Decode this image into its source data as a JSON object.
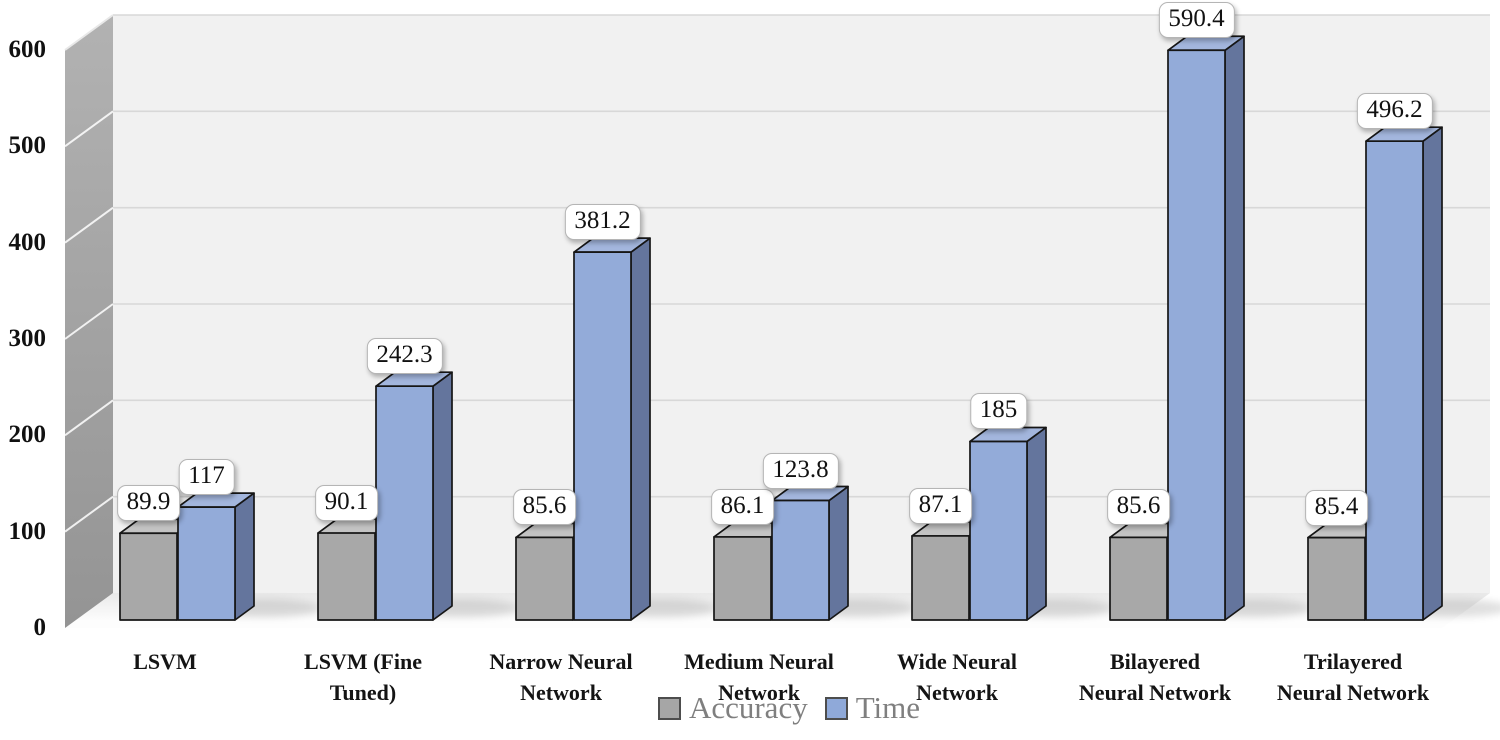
{
  "chart_data": {
    "type": "bar",
    "projection": "3d",
    "title": "",
    "xlabel": "",
    "ylabel": "",
    "categories": [
      "LSVM",
      "LSVM (Fine\nTuned)",
      "Narrow Neural\nNetwork",
      "Medium Neural\nNetwork",
      "Wide Neural\nNetwork",
      "Bilayered\nNeural Network",
      "Trilayered\nNeural Network"
    ],
    "series": [
      {
        "name": "Accuracy",
        "values": [
          89.9,
          90.1,
          85.6,
          86.1,
          87.1,
          85.6,
          85.4
        ],
        "value_labels": [
          "89.9",
          "90.1",
          "85.6",
          "86.1",
          "87.1",
          "85.6",
          "85.4"
        ],
        "color_front": "#a8a8a8",
        "color_top": "#c3c3c3",
        "color_side": "#8a8a8a",
        "legend_color": "#a6a6a6"
      },
      {
        "name": "Time",
        "values": [
          117,
          242.3,
          381.2,
          123.8,
          185,
          590.4,
          496.2
        ],
        "value_labels": [
          "117",
          "242.3",
          "381.2",
          "123.8",
          "185",
          "590.4",
          "496.2"
        ],
        "color_front": "#93abd9",
        "color_top": "#a3b6dd",
        "color_side": "#64759d",
        "legend_color": "#8fa9d9"
      }
    ],
    "yticks": [
      0,
      100,
      200,
      300,
      400,
      500,
      600
    ],
    "ytick_labels": [
      "0",
      "100",
      "200",
      "300",
      "400",
      "500",
      "600"
    ],
    "ylim": [
      0,
      600
    ],
    "grid": true,
    "legend_position": "bottom",
    "colors": {
      "back_wall": "#f1f1f1",
      "back_wall_grid": "#d8d8d8",
      "side_wall_top": "#b2b2b2",
      "side_wall_bottom": "#949494",
      "side_wall_grid": "#ffffff",
      "floor_back": "#e9e9e9",
      "floor_front": "#fdfdfd",
      "bar_outline": "#161616",
      "axis_text": "#111111",
      "legend_text": "#7f7f7f"
    }
  }
}
